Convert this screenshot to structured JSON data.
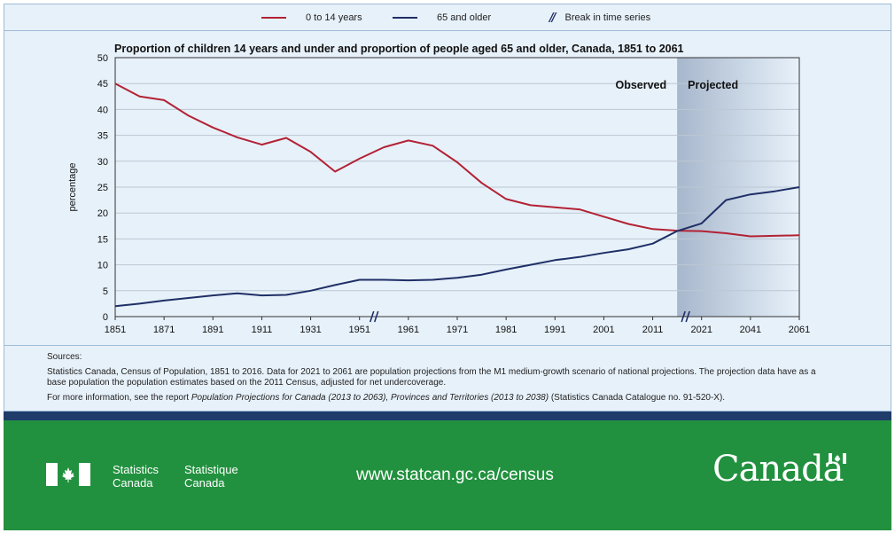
{
  "legend": {
    "series_a": "0 to 14 years",
    "series_b": "65 and older",
    "break": "Break in time series"
  },
  "chart_data": {
    "type": "line",
    "title": "Proportion of children 14 years and under and proportion of people aged 65 and older, Canada, 1851 to 2061",
    "ylabel": "percentage",
    "xlabel": "",
    "xlim": [
      1851,
      2061
    ],
    "ylim": [
      0,
      50
    ],
    "yticks": [
      0,
      5,
      10,
      15,
      20,
      25,
      30,
      35,
      40,
      45,
      50
    ],
    "xticks": [
      "1851",
      "1871",
      "1891",
      "1911",
      "1931",
      "1951",
      "1961",
      "1971",
      "1981",
      "1991",
      "2001",
      "2011",
      "2021",
      "2041",
      "2061"
    ],
    "regions": {
      "observed_label": "Observed",
      "projected_label": "Projected"
    },
    "grid": true,
    "series": [
      {
        "name": "0 to 14 years",
        "color": "#b22234",
        "points": [
          [
            1851,
            45.0
          ],
          [
            1861,
            42.5
          ],
          [
            1871,
            41.8
          ],
          [
            1881,
            38.8
          ],
          [
            1891,
            36.5
          ],
          [
            1901,
            34.6
          ],
          [
            1911,
            33.2
          ],
          [
            1921,
            34.5
          ],
          [
            1931,
            31.8
          ],
          [
            1941,
            28.0
          ],
          [
            1951,
            30.5
          ],
          [
            1956,
            32.7
          ],
          [
            1961,
            34.0
          ],
          [
            1966,
            33.0
          ],
          [
            1971,
            29.8
          ],
          [
            1976,
            25.8
          ],
          [
            1981,
            22.7
          ],
          [
            1986,
            21.5
          ],
          [
            1991,
            21.1
          ],
          [
            1996,
            20.7
          ],
          [
            2001,
            19.3
          ],
          [
            2006,
            17.9
          ],
          [
            2011,
            16.9
          ],
          [
            2016,
            16.6
          ],
          [
            2021,
            16.5
          ],
          [
            2031,
            16.1
          ],
          [
            2041,
            15.5
          ],
          [
            2051,
            15.6
          ],
          [
            2061,
            15.7
          ]
        ]
      },
      {
        "name": "65 and older",
        "color": "#1f2f66",
        "points": [
          [
            1851,
            2.0
          ],
          [
            1861,
            2.5
          ],
          [
            1871,
            3.1
          ],
          [
            1881,
            3.6
          ],
          [
            1891,
            4.1
          ],
          [
            1901,
            4.5
          ],
          [
            1911,
            4.1
          ],
          [
            1921,
            4.2
          ],
          [
            1931,
            5.0
          ],
          [
            1941,
            6.1
          ],
          [
            1951,
            7.1
          ],
          [
            1956,
            7.1
          ],
          [
            1961,
            7.0
          ],
          [
            1966,
            7.1
          ],
          [
            1971,
            7.5
          ],
          [
            1976,
            8.1
          ],
          [
            1981,
            9.1
          ],
          [
            1986,
            10.0
          ],
          [
            1991,
            10.9
          ],
          [
            1996,
            11.5
          ],
          [
            2001,
            12.3
          ],
          [
            2006,
            13.0
          ],
          [
            2011,
            14.1
          ],
          [
            2016,
            16.5
          ],
          [
            2021,
            18.0
          ],
          [
            2031,
            22.5
          ],
          [
            2041,
            23.6
          ],
          [
            2051,
            24.2
          ],
          [
            2061,
            25.0
          ]
        ]
      }
    ]
  },
  "sources": {
    "heading": "Sources:",
    "body": "Statistics Canada, Census of Population, 1851 to 2016. Data for 2021 to 2061 are population projections from the M1 medium-growth scenario of national projections. The projection data have as a base population the population estimates based on the 2011 Census, adjusted for net undercoverage.",
    "more_prefix": "For more information, see the report ",
    "more_title": "Population Projections for Canada (2013 to 2063), Provinces and Territories (2013 to 2038)",
    "more_suffix": " (Statistics Canada Catalogue no. 91-520-X)."
  },
  "footer": {
    "agency_en_1": "Statistics",
    "agency_en_2": "Canada",
    "agency_fr_1": "Statistique",
    "agency_fr_2": "Canada",
    "url": "www.statcan.gc.ca/census",
    "wordmark": "Canada"
  }
}
